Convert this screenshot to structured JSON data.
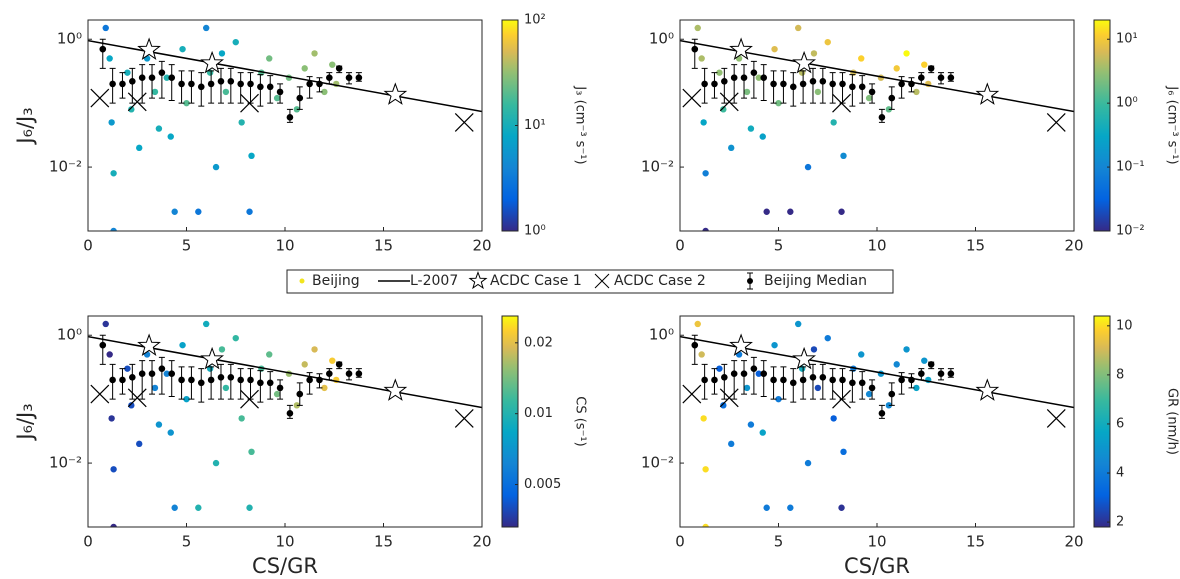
{
  "shared": {
    "series": [
      {
        "name": "Beijing",
        "color": "#f2e51d"
      },
      {
        "name": "L-2007",
        "type": "line",
        "color": "#000000",
        "x": [
          0,
          20
        ],
        "y": [
          0.95,
          0.074
        ]
      },
      {
        "name": "ACDC Case 1",
        "type": "star",
        "color": "#000000",
        "x": [
          3.1,
          6.3,
          15.6
        ],
        "y": [
          0.68,
          0.42,
          0.135
        ]
      },
      {
        "name": "ACDC Case 2",
        "type": "cross",
        "color": "#000000",
        "x": [
          0.6,
          2.5,
          8.2,
          19.1
        ],
        "y": [
          0.12,
          0.105,
          0.1,
          0.05
        ]
      },
      {
        "name": "Beijing Median",
        "type": "errorbar",
        "color": "#000000",
        "x": [
          0.75,
          1.25,
          1.75,
          2.25,
          2.75,
          3.25,
          3.75,
          4.25,
          4.75,
          5.25,
          5.75,
          6.25,
          6.75,
          7.25,
          7.75,
          8.25,
          8.75,
          9.25,
          9.75,
          10.25,
          10.75,
          11.25,
          11.75,
          12.25,
          12.75,
          13.25,
          13.75
        ],
        "y": [
          0.7,
          0.2,
          0.2,
          0.22,
          0.25,
          0.25,
          0.3,
          0.25,
          0.2,
          0.2,
          0.18,
          0.2,
          0.22,
          0.22,
          0.2,
          0.2,
          0.18,
          0.18,
          0.15,
          0.06,
          0.12,
          0.2,
          0.2,
          0.25,
          0.35,
          0.25,
          0.25
        ],
        "lower": [
          0.35,
          0.1,
          0.12,
          0.1,
          0.1,
          0.12,
          0.12,
          0.11,
          0.1,
          0.1,
          0.09,
          0.1,
          0.1,
          0.1,
          0.1,
          0.1,
          0.09,
          0.1,
          0.1,
          0.05,
          0.08,
          0.12,
          0.15,
          0.2,
          0.3,
          0.2,
          0.22
        ],
        "upper": [
          1.0,
          0.35,
          0.3,
          0.35,
          0.4,
          0.4,
          0.45,
          0.4,
          0.32,
          0.32,
          0.3,
          0.32,
          0.35,
          0.35,
          0.3,
          0.3,
          0.28,
          0.27,
          0.2,
          0.08,
          0.18,
          0.26,
          0.25,
          0.3,
          0.38,
          0.3,
          0.3
        ]
      }
    ]
  },
  "chart_data": [
    {
      "type": "scatter",
      "y_label": "J₆/J₃",
      "xlim": [
        0,
        20
      ],
      "ylim": [
        0.001,
        2
      ],
      "xticks": [
        0,
        5,
        10,
        15,
        20
      ],
      "yticks": [
        {
          "value": 0.01,
          "label": "10⁻²"
        },
        {
          "value": 1,
          "label": "10⁰"
        }
      ],
      "log_y": true,
      "x": [
        0.9,
        1.1,
        1.2,
        1.3,
        1.3,
        2.0,
        2.2,
        2.6,
        3.0,
        3.4,
        3.6,
        4.0,
        4.2,
        4.4,
        4.8,
        5.0,
        5.6,
        6.0,
        6.2,
        6.5,
        6.8,
        7.0,
        7.5,
        7.8,
        8.2,
        8.3,
        8.8,
        9.2,
        9.6,
        10.2,
        10.6,
        11.0,
        11.5,
        12.0,
        12.4,
        12.6
      ],
      "y": [
        1.5,
        0.5,
        0.05,
        0.008,
        0.001,
        0.3,
        0.08,
        0.02,
        0.5,
        0.15,
        0.04,
        0.25,
        0.03,
        0.002,
        0.7,
        0.1,
        0.002,
        1.5,
        0.3,
        0.01,
        0.6,
        0.15,
        0.9,
        0.05,
        0.002,
        0.015,
        0.3,
        0.5,
        0.12,
        0.25,
        0.08,
        0.35,
        0.6,
        0.15,
        0.4,
        0.2
      ],
      "c": [
        3,
        8,
        6,
        10,
        4,
        10,
        12,
        8,
        6,
        15,
        10,
        12,
        8,
        4,
        10,
        20,
        3,
        4,
        15,
        6,
        8,
        18,
        10,
        12,
        3,
        8,
        20,
        25,
        20,
        25,
        20,
        30,
        35,
        30,
        30,
        35
      ],
      "colorbar": {
        "label": "J₃ (cm⁻³ s⁻¹)",
        "lim": [
          1,
          100
        ],
        "log": true,
        "ticks": [
          {
            "value": 1,
            "label": "10⁰"
          },
          {
            "value": 10,
            "label": "10¹"
          },
          {
            "value": 100,
            "label": "10²"
          }
        ]
      }
    },
    {
      "type": "scatter",
      "xlim": [
        0,
        20
      ],
      "ylim": [
        0.001,
        2
      ],
      "xticks": [
        0,
        5,
        10,
        15,
        20
      ],
      "yticks": [
        {
          "value": 0.01,
          "label": "10⁻²"
        },
        {
          "value": 1,
          "label": "10⁰"
        }
      ],
      "log_y": true,
      "x": [
        0.9,
        1.1,
        1.2,
        1.3,
        1.3,
        2.0,
        2.2,
        2.6,
        3.0,
        3.4,
        3.6,
        4.0,
        4.2,
        4.4,
        4.8,
        5.0,
        5.6,
        6.0,
        6.2,
        6.5,
        6.8,
        7.0,
        7.5,
        7.8,
        8.2,
        8.3,
        8.8,
        9.2,
        9.6,
        10.2,
        10.6,
        11.0,
        11.5,
        12.0,
        12.4,
        12.6
      ],
      "y": [
        1.5,
        0.5,
        0.05,
        0.008,
        0.001,
        0.3,
        0.08,
        0.02,
        0.5,
        0.15,
        0.04,
        0.25,
        0.03,
        0.002,
        0.7,
        0.1,
        0.002,
        1.5,
        0.3,
        0.01,
        0.6,
        0.15,
        0.9,
        0.05,
        0.002,
        0.015,
        0.3,
        0.5,
        0.12,
        0.25,
        0.08,
        0.35,
        0.6,
        0.15,
        0.4,
        0.2
      ],
      "c": [
        4,
        4,
        0.3,
        0.08,
        0.004,
        3,
        1,
        0.15,
        3,
        2.2,
        0.4,
        3,
        0.25,
        0.008,
        7,
        2,
        0.006,
        6,
        4.5,
        0.06,
        5,
        2.7,
        9,
        0.6,
        0.006,
        0.12,
        6,
        12,
        2.4,
        6,
        1.6,
        10,
        20,
        4.5,
        12,
        7
      ],
      "colorbar": {
        "label": "J₆ (cm⁻³ s⁻¹)",
        "lim": [
          0.01,
          20
        ],
        "log": true,
        "ticks": [
          {
            "value": 0.01,
            "label": "10⁻²"
          },
          {
            "value": 0.1,
            "label": "10⁻¹"
          },
          {
            "value": 1,
            "label": "10⁰"
          },
          {
            "value": 10,
            "label": "10¹"
          }
        ]
      }
    },
    {
      "type": "scatter",
      "x_label": "CS/GR",
      "y_label": "J₆/J₃",
      "xlim": [
        0,
        20
      ],
      "ylim": [
        0.001,
        2
      ],
      "xticks": [
        0,
        5,
        10,
        15,
        20
      ],
      "yticks": [
        {
          "value": 0.01,
          "label": "10⁻²"
        },
        {
          "value": 1,
          "label": "10⁰"
        }
      ],
      "log_y": true,
      "x": [
        0.9,
        1.1,
        1.2,
        1.3,
        1.3,
        2.0,
        2.2,
        2.6,
        3.0,
        3.4,
        3.6,
        4.0,
        4.2,
        4.4,
        4.8,
        5.0,
        5.6,
        6.0,
        6.2,
        6.5,
        6.8,
        7.0,
        7.5,
        7.8,
        8.2,
        8.3,
        8.8,
        9.2,
        9.6,
        10.2,
        10.6,
        11.0,
        11.5,
        12.0,
        12.4,
        12.6
      ],
      "y": [
        1.5,
        0.5,
        0.05,
        0.008,
        0.001,
        0.3,
        0.08,
        0.02,
        0.5,
        0.15,
        0.04,
        0.25,
        0.03,
        0.002,
        0.7,
        0.1,
        0.002,
        1.5,
        0.3,
        0.01,
        0.6,
        0.15,
        0.9,
        0.05,
        0.002,
        0.015,
        0.3,
        0.5,
        0.12,
        0.25,
        0.08,
        0.35,
        0.6,
        0.15,
        0.4,
        0.2
      ],
      "c": [
        0.0035,
        0.003,
        0.0035,
        0.004,
        0.003,
        0.004,
        0.004,
        0.004,
        0.006,
        0.006,
        0.007,
        0.006,
        0.007,
        0.006,
        0.008,
        0.008,
        0.01,
        0.009,
        0.009,
        0.01,
        0.012,
        0.011,
        0.011,
        0.012,
        0.01,
        0.012,
        0.012,
        0.013,
        0.014,
        0.016,
        0.017,
        0.018,
        0.019,
        0.02,
        0.022,
        0.022
      ],
      "colorbar": {
        "label": "CS (s⁻¹)",
        "lim": [
          0.0033,
          0.026
        ],
        "log": true,
        "ticks": [
          0.005,
          0.01,
          0.02
        ]
      }
    },
    {
      "type": "scatter",
      "x_label": "CS/GR",
      "xlim": [
        0,
        20
      ],
      "ylim": [
        0.001,
        2
      ],
      "xticks": [
        0,
        5,
        10,
        15,
        20
      ],
      "yticks": [
        {
          "value": 0.01,
          "label": "10⁻²"
        },
        {
          "value": 1,
          "label": "10⁰"
        }
      ],
      "log_y": true,
      "x": [
        0.9,
        1.1,
        1.2,
        1.3,
        1.3,
        2.0,
        2.2,
        2.6,
        3.0,
        3.4,
        3.6,
        4.0,
        4.2,
        4.4,
        4.8,
        5.0,
        5.6,
        6.0,
        6.2,
        6.5,
        6.8,
        7.0,
        7.5,
        7.8,
        8.2,
        8.3,
        8.8,
        9.2,
        9.6,
        10.2,
        10.6,
        11.0,
        11.5,
        12.0,
        12.4,
        12.6
      ],
      "y": [
        1.5,
        0.5,
        0.05,
        0.008,
        0.001,
        0.3,
        0.08,
        0.02,
        0.5,
        0.15,
        0.04,
        0.25,
        0.03,
        0.002,
        0.7,
        0.1,
        0.002,
        1.5,
        0.3,
        0.01,
        0.6,
        0.15,
        0.9,
        0.05,
        0.002,
        0.015,
        0.3,
        0.5,
        0.12,
        0.25,
        0.08,
        0.35,
        0.6,
        0.15,
        0.4,
        0.2
      ],
      "c": [
        9.5,
        9,
        10,
        10,
        10,
        3,
        3.5,
        4,
        4,
        5,
        4,
        3,
        5.5,
        4,
        5,
        4,
        4,
        5,
        6,
        4,
        2.5,
        2.5,
        4,
        3,
        2,
        3.5,
        4,
        5,
        4.5,
        5,
        4.5,
        4.5,
        5,
        5.5,
        5,
        5.5
      ],
      "colorbar": {
        "label": "GR (nm/h)",
        "lim": [
          1.8,
          10.4
        ],
        "log": false,
        "ticks": [
          2,
          4,
          6,
          8,
          10
        ]
      }
    }
  ]
}
